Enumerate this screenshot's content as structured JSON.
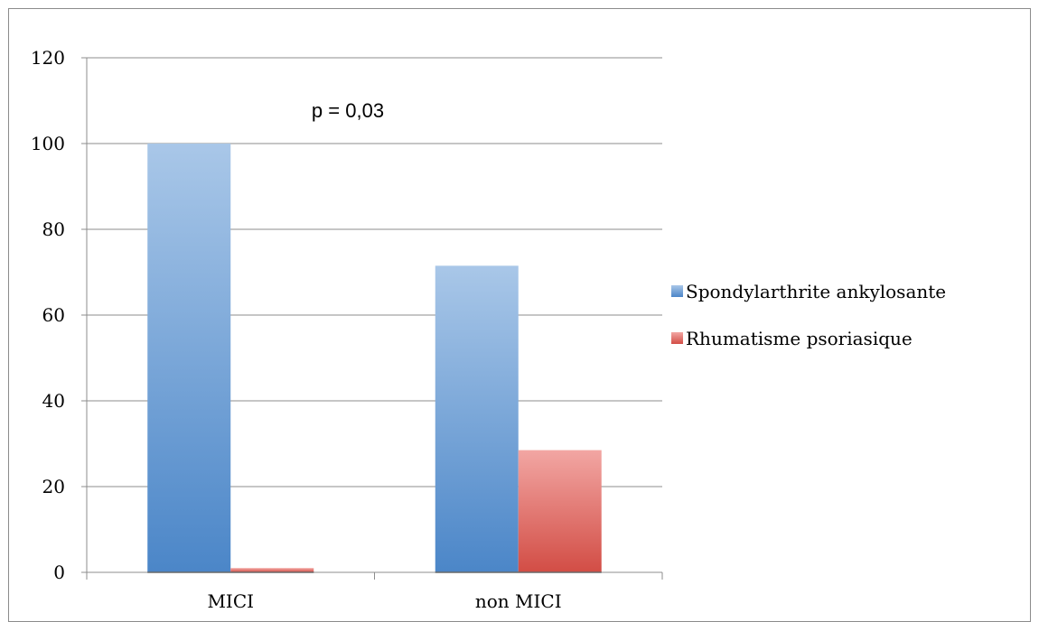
{
  "chart_data": {
    "type": "bar",
    "categories": [
      "MICI",
      "non MICI"
    ],
    "series": [
      {
        "name": "Spondylarthrite ankylosante",
        "values": [
          100,
          71.5
        ],
        "color": "#4f8acd"
      },
      {
        "name": "Rhumatisme psoriasique",
        "values": [
          1,
          28.5
        ],
        "color": "#d9524b"
      }
    ],
    "yticks": [
      "0",
      "20",
      "40",
      "60",
      "80",
      "100",
      "120"
    ],
    "ylim": [
      0,
      120
    ],
    "grid": true,
    "legend": "right",
    "annotation": "p = 0,03",
    "title": "",
    "xlabel": "",
    "ylabel": ""
  }
}
